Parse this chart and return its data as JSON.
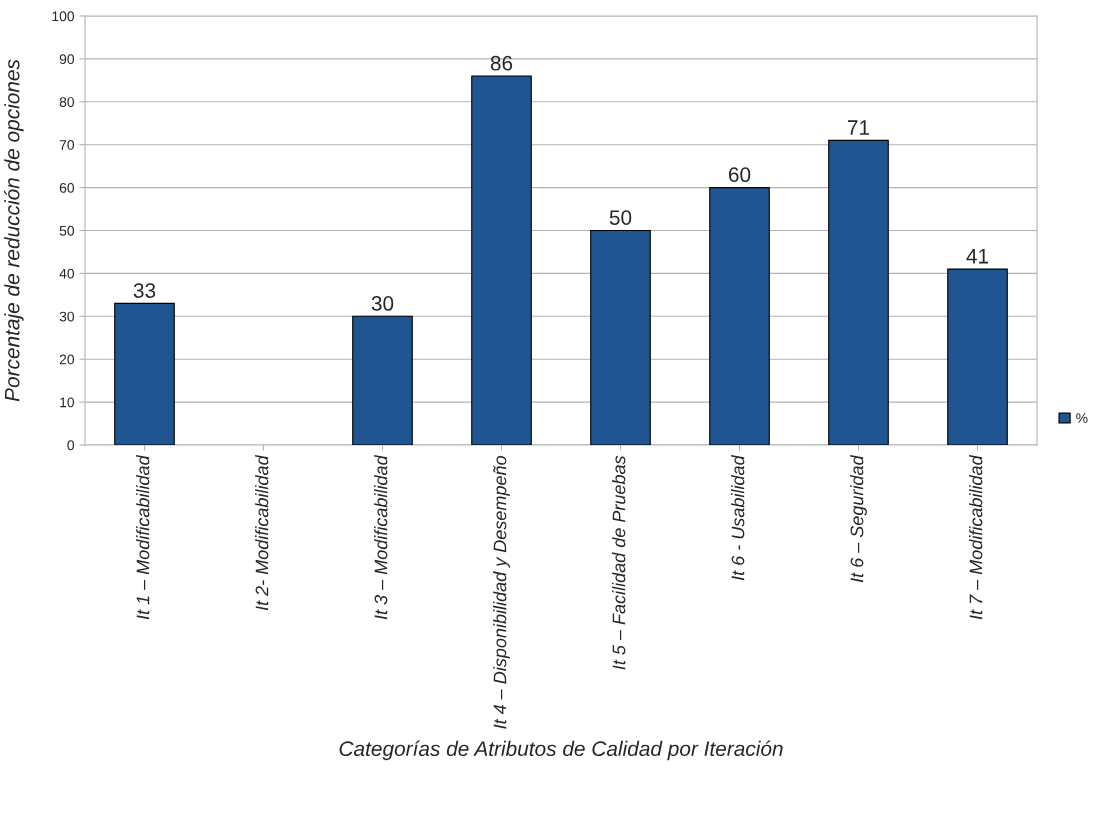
{
  "chart_data": {
    "type": "bar",
    "xlabel": "Categorías de Atributos de Calidad por Iteración",
    "ylabel": "Porcentaje de reducción de opciones",
    "categories": [
      "It 1 – Modificabilidad",
      "It 2- Modificabilidad",
      "It 3 – Modificabilidad",
      "It 4 – Disponibilidad y Desempeño",
      "It 5 – Facilidad de Pruebas",
      "It 6 - Usabilidad",
      "It 6 – Seguridad",
      "It 7 – Modificabilidad"
    ],
    "series": [
      {
        "name": "%",
        "color": "#1f5590",
        "values": [
          33,
          null,
          30,
          86,
          50,
          60,
          71,
          41
        ]
      }
    ],
    "ylim": [
      0,
      100
    ],
    "yticks": [
      0,
      10,
      20,
      30,
      40,
      50,
      60,
      70,
      80,
      90,
      100
    ],
    "grid": "y",
    "data_labels": true,
    "legend": "right"
  }
}
